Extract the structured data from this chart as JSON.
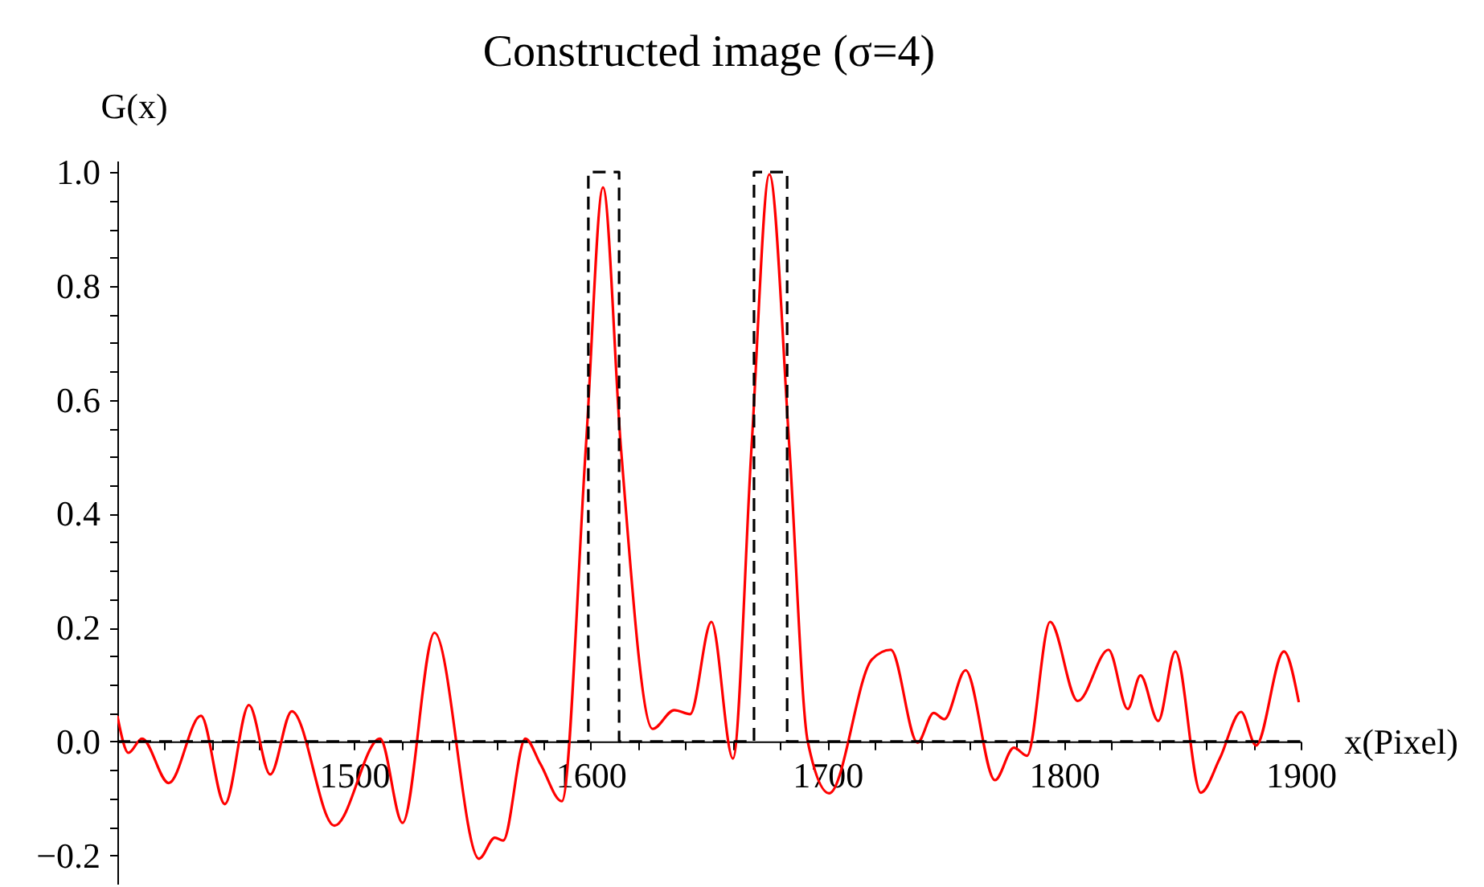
{
  "chart_data": {
    "type": "line",
    "title": "Constructed image (σ=4)",
    "xlabel": "x(Pixel)",
    "ylabel": "G(x)",
    "xlim": [
      1400,
      1900
    ],
    "ylim": [
      -0.25,
      1.02
    ],
    "xticks": [
      {
        "value": 1420,
        "label": null
      },
      {
        "value": 1440,
        "label": null
      },
      {
        "value": 1460,
        "label": null
      },
      {
        "value": 1480,
        "label": null
      },
      1500,
      {
        "value": 1520,
        "label": null
      },
      {
        "value": 1540,
        "label": null
      },
      {
        "value": 1560,
        "label": null
      },
      {
        "value": 1580,
        "label": null
      },
      1600,
      {
        "value": 1620,
        "label": null
      },
      {
        "value": 1640,
        "label": null
      },
      {
        "value": 1660,
        "label": null
      },
      {
        "value": 1680,
        "label": null
      },
      1700,
      {
        "value": 1720,
        "label": null
      },
      {
        "value": 1740,
        "label": null
      },
      {
        "value": 1760,
        "label": null
      },
      {
        "value": 1780,
        "label": null
      },
      1800,
      {
        "value": 1820,
        "label": null
      },
      {
        "value": 1840,
        "label": null
      },
      {
        "value": 1860,
        "label": null
      },
      {
        "value": 1880,
        "label": null
      },
      1900
    ],
    "yticks": [
      {
        "value": -0.2,
        "label": "−0.2"
      },
      {
        "value": -0.15,
        "label": null
      },
      {
        "value": -0.1,
        "label": null
      },
      {
        "value": -0.05,
        "label": null
      },
      {
        "value": 0,
        "label": "0.0"
      },
      {
        "value": 0.05,
        "label": null
      },
      {
        "value": 0.1,
        "label": null
      },
      {
        "value": 0.15,
        "label": null
      },
      {
        "value": 0.2,
        "label": "0.2"
      },
      {
        "value": 0.25,
        "label": null
      },
      {
        "value": 0.3,
        "label": null
      },
      {
        "value": 0.35,
        "label": null
      },
      {
        "value": 0.4,
        "label": "0.4"
      },
      {
        "value": 0.45,
        "label": null
      },
      {
        "value": 0.5,
        "label": null
      },
      {
        "value": 0.55,
        "label": null
      },
      {
        "value": 0.6,
        "label": "0.6"
      },
      {
        "value": 0.65,
        "label": null
      },
      {
        "value": 0.7,
        "label": null
      },
      {
        "value": 0.75,
        "label": null
      },
      {
        "value": 0.8,
        "label": "0.8"
      },
      {
        "value": 0.85,
        "label": null
      },
      {
        "value": 0.9,
        "label": null
      },
      {
        "value": 0.95,
        "label": null
      },
      {
        "value": 1,
        "label": "1.0"
      }
    ],
    "marker": "none",
    "series": [
      {
        "color": "#ff0000",
        "line_style": "solid",
        "x": [
          1400,
          1404.7,
          1410.4,
          1421.7,
          1435.3,
          1445.4,
          1455.6,
          1464.6,
          1473.7,
          1491.7,
          1511,
          1520.5,
          1534,
          1552.8,
          1559.5,
          1563,
          1572.4,
          1578.8,
          1587.8,
          1598,
          1605.2,
          1612.7,
          1626.2,
          1635.3,
          1642,
          1651,
          1660.1,
          1668,
          1675.5,
          1683.9,
          1691.7,
          1700.8,
          1718.8,
          1726.8,
          1738.1,
          1744.9,
          1749.4,
          1758.4,
          1770.8,
          1778.8,
          1784.4,
          1794.1,
          1805.8,
          1818.8,
          1826.9,
          1832.3,
          1839.8,
          1847,
          1857.8,
          1865.8,
          1874.8,
          1881.1,
          1892.9,
          1899.2
        ],
        "values": [
          0.045,
          -0.02,
          0.005,
          -0.073,
          0.045,
          -0.11,
          0.064,
          -0.058,
          0.053,
          -0.148,
          0.005,
          -0.143,
          0.191,
          -0.206,
          -0.169,
          -0.174,
          0.005,
          -0.04,
          -0.105,
          0.52,
          0.973,
          0.52,
          0.022,
          0.055,
          0.048,
          0.21,
          -0.03,
          0.52,
          0.996,
          0.52,
          0,
          -0.091,
          0.144,
          0.161,
          -0.002,
          0.05,
          0.039,
          0.125,
          -0.068,
          -0.011,
          -0.025,
          0.21,
          0.071,
          0.161,
          0.057,
          0.116,
          0.036,
          0.158,
          -0.09,
          -0.03,
          0.052,
          -0.007,
          0.158,
          0.069
        ]
      },
      {
        "color": "#000000",
        "line_style": "dashed",
        "x": [
          1400,
          1599,
          1599,
          1612,
          1612,
          1669,
          1669,
          1683,
          1683,
          1900
        ],
        "values": [
          0,
          0,
          1,
          1,
          0,
          0,
          1,
          1,
          0,
          0
        ]
      }
    ]
  }
}
